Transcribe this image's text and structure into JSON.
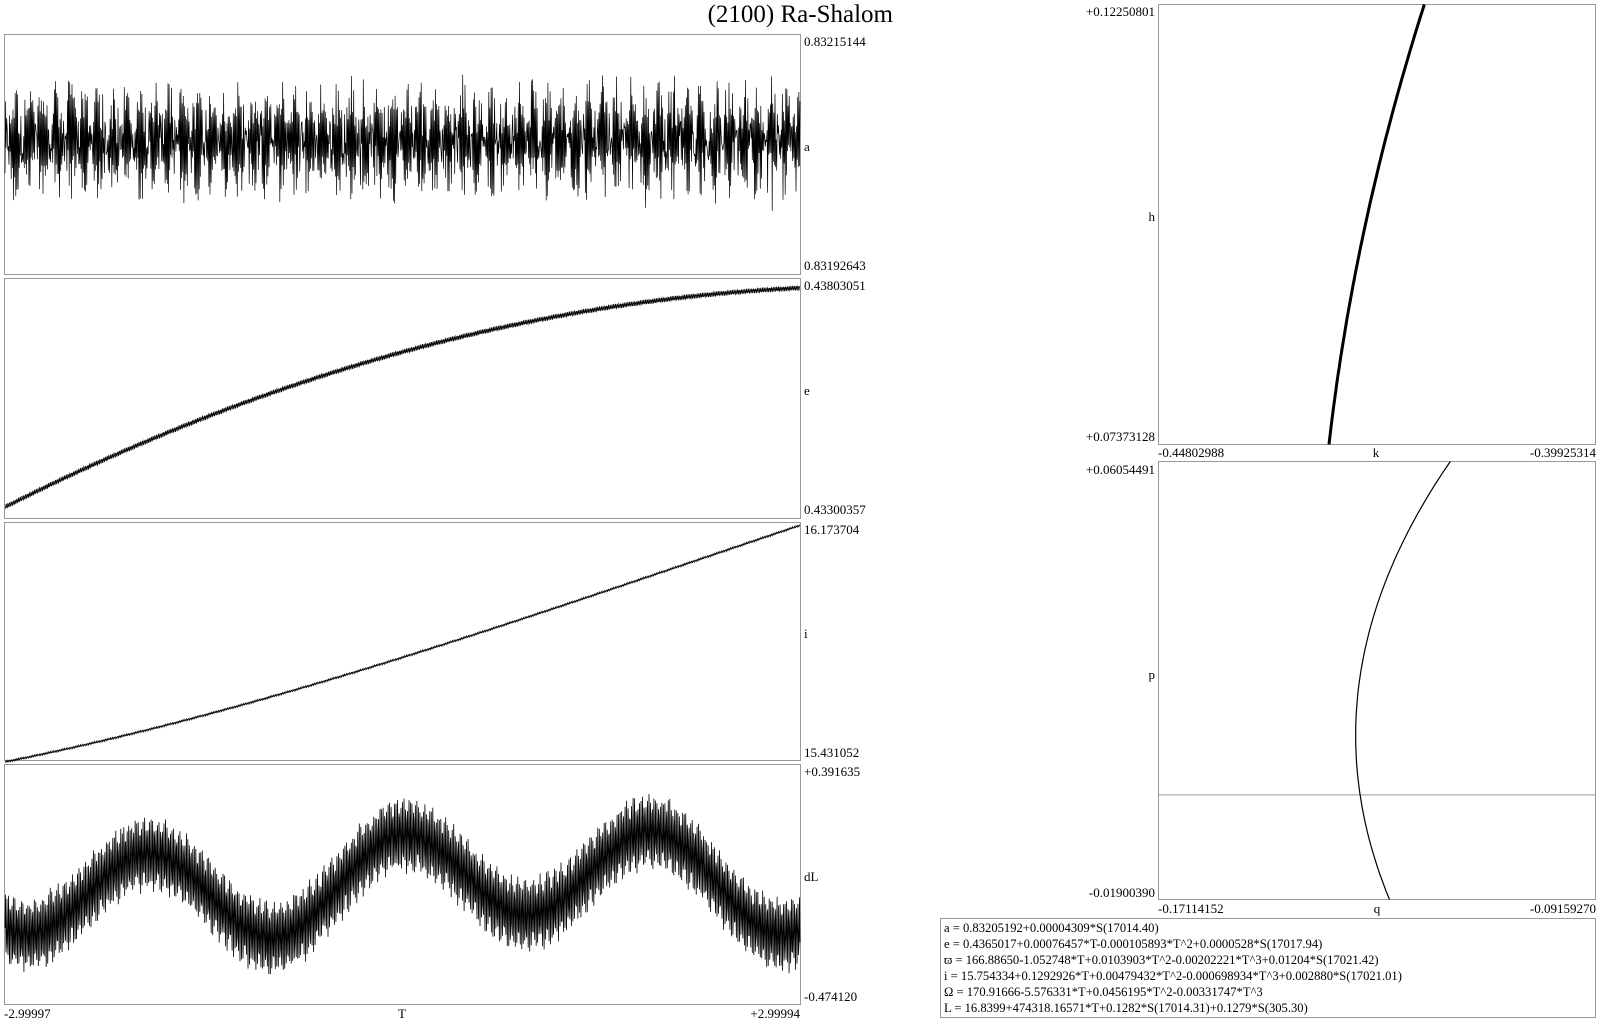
{
  "title": "(2100) Ra-Shalom",
  "chart_data": [
    {
      "type": "line",
      "id": "a",
      "ylabel": "a",
      "ylim": [
        0.83192643,
        0.83215144
      ],
      "ytick_labels": [
        "0.83215144",
        "0.83192643"
      ],
      "xlim": [
        -2.99997,
        2.99994
      ],
      "description_shape": "dense oscillation around 0.83205192 (amplitude ~0.00004309)"
    },
    {
      "type": "line",
      "id": "e",
      "ylabel": "e",
      "ylim": [
        0.43300357,
        0.43803051
      ],
      "ytick_labels": [
        "0.43803051",
        "0.43300357"
      ],
      "xlim": [
        -2.99997,
        2.99994
      ]
    },
    {
      "type": "line",
      "id": "i",
      "ylabel": "i",
      "ylim": [
        15.431052,
        16.173704
      ],
      "ytick_labels": [
        "16.173704",
        "15.431052"
      ],
      "xlim": [
        -2.99997,
        2.99994
      ]
    },
    {
      "type": "line",
      "id": "dL",
      "ylabel": "dL",
      "xlabel": "T",
      "ylim": [
        -0.47412,
        0.391635
      ],
      "ytick_labels": [
        "+0.391635",
        "-0.474120"
      ],
      "xlim": [
        -2.99997,
        2.99994
      ],
      "xtick_labels": [
        "-2.99997",
        "+2.99994"
      ]
    },
    {
      "type": "line",
      "id": "hk",
      "xlabel": "k",
      "ylabel": "h",
      "xlim": [
        -0.44802988,
        -0.39925314
      ],
      "ylim": [
        0.07373128,
        0.12250801
      ],
      "xtick_labels": [
        "-0.44802988",
        "-0.39925314"
      ],
      "ytick_labels": [
        "+0.12250801",
        "+0.07373128"
      ]
    },
    {
      "type": "line",
      "id": "pq",
      "xlabel": "q",
      "ylabel": "p",
      "xlim": [
        -0.17114152,
        -0.0915927
      ],
      "ylim": [
        -0.0190039,
        0.06054491
      ],
      "xtick_labels": [
        "-0.17114152",
        "-0.09159270"
      ],
      "ytick_labels": [
        "+0.06054491",
        "-0.01900390"
      ],
      "zero_line": 0
    }
  ],
  "formulas": [
    "a = 0.83205192+0.00004309*S(17014.40)",
    "e = 0.4365017+0.00076457*T-0.000105893*T^2+0.0000528*S(17017.94)",
    "ϖ = 166.88650-1.052748*T+0.0103903*T^2-0.00202221*T^3+0.01204*S(17021.42)",
    "i = 15.754334+0.1292926*T+0.00479432*T^2-0.000698934*T^3+0.002880*S(17021.01)",
    "Ω = 170.91666-5.576331*T+0.0456195*T^2-0.00331747*T^3",
    "L = 16.8399+474318.16571*T+0.1282*S(17014.31)+0.1279*S(305.30)"
  ]
}
